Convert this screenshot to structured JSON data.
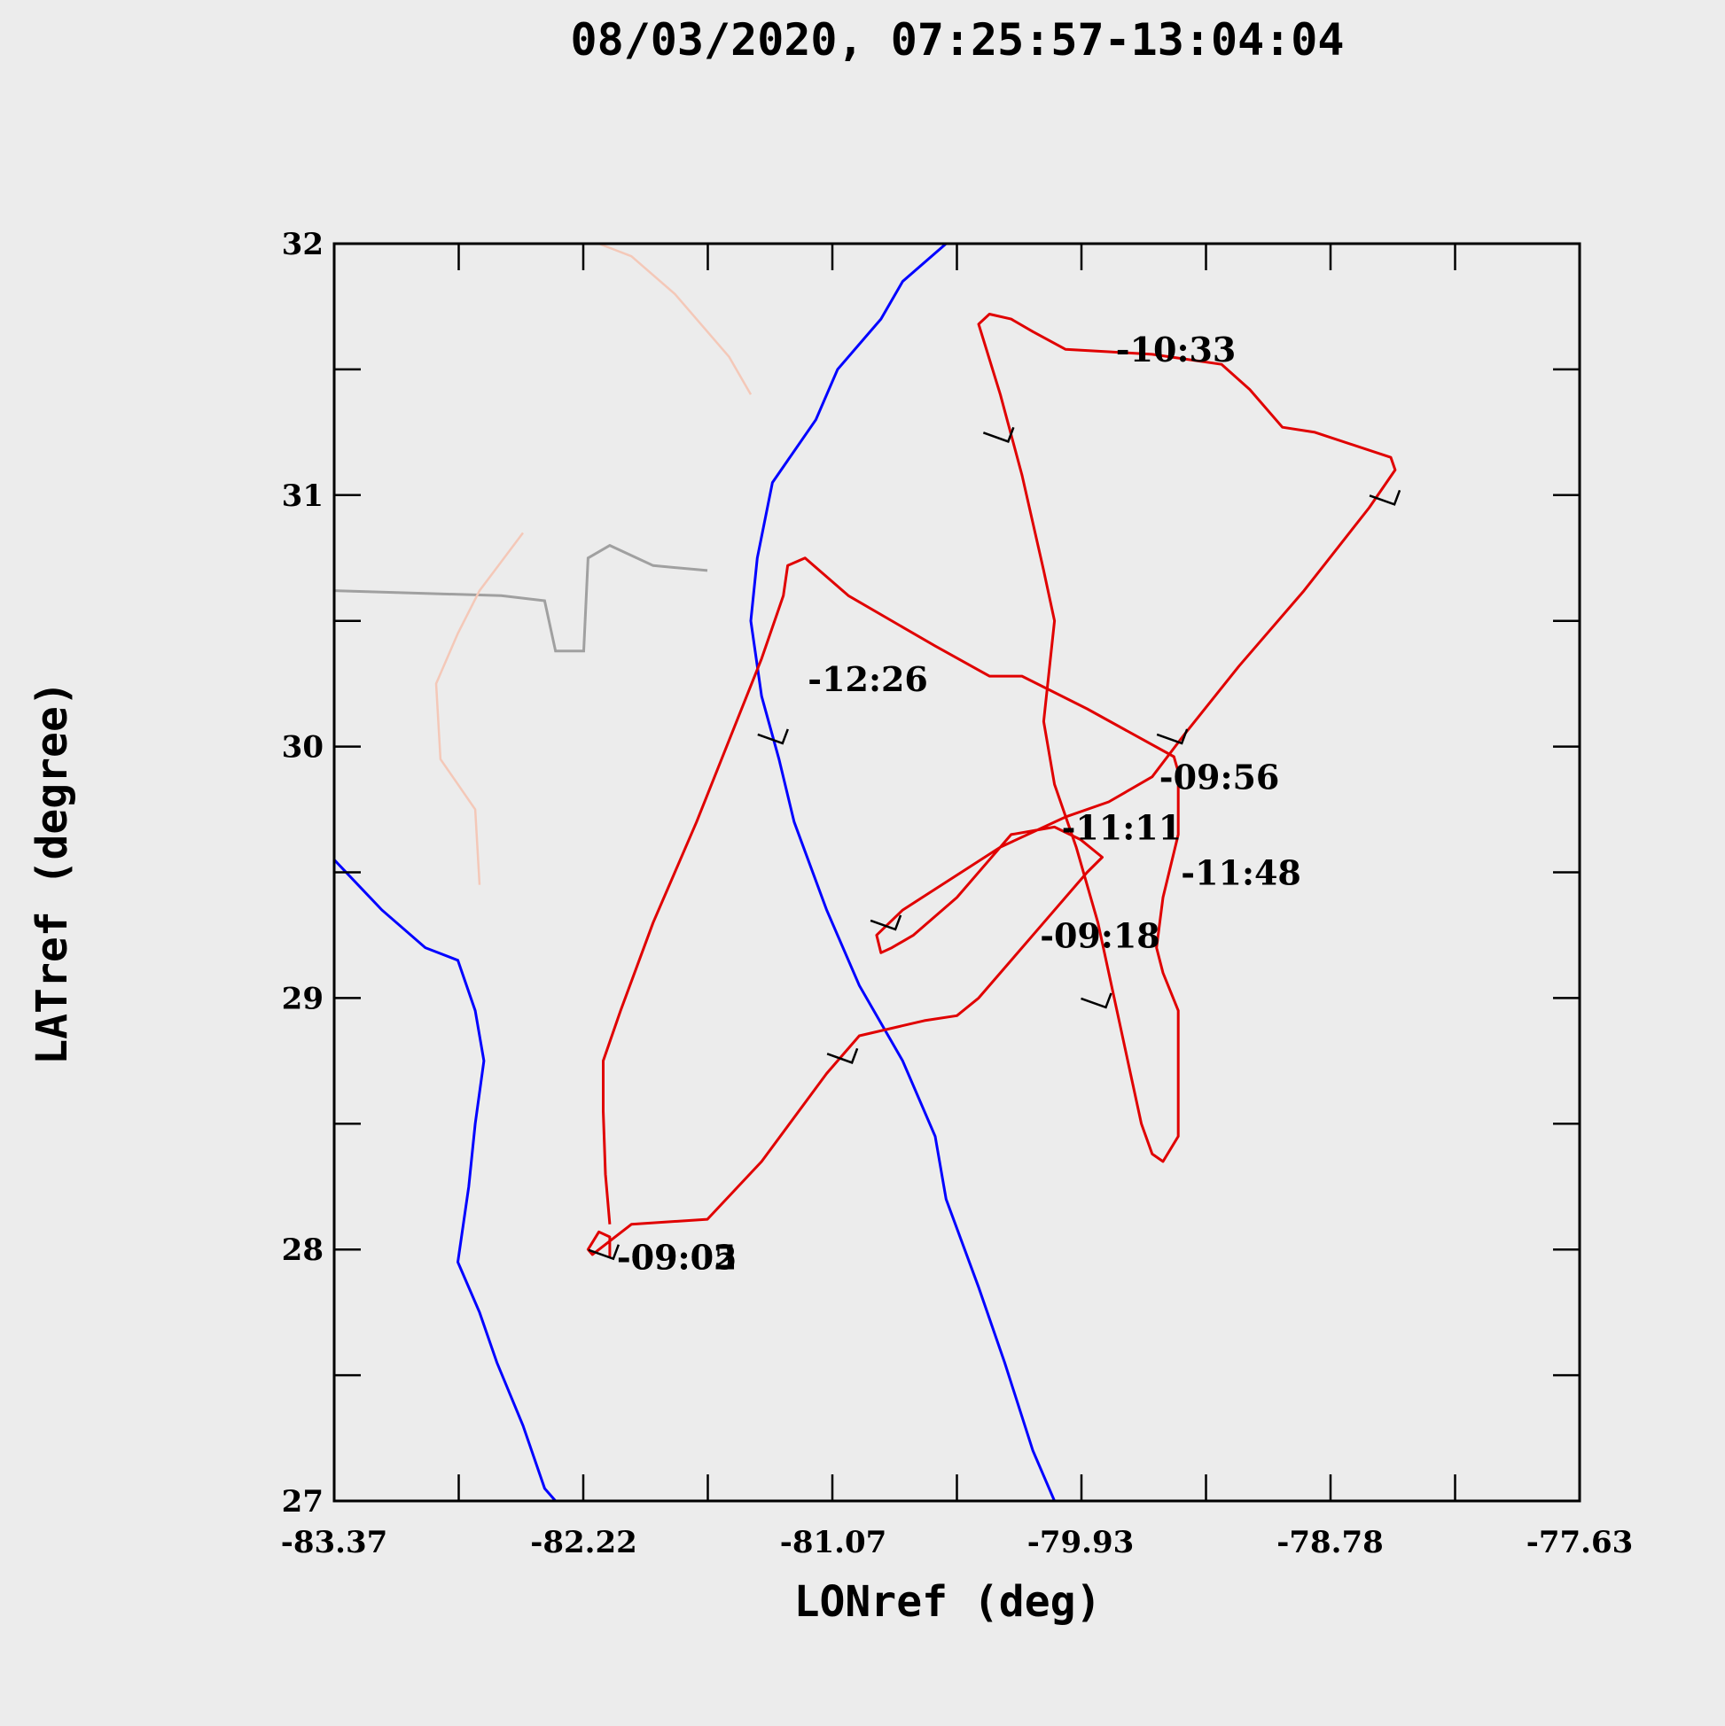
{
  "chart_data": {
    "type": "line",
    "title": "08/03/2020, 07:25:57-13:04:04",
    "xlabel": "LONref (deg)",
    "ylabel": "LATref (degree)",
    "xlim": [
      -83.37,
      -77.63
    ],
    "ylim": [
      27,
      32
    ],
    "x_ticks": [
      -83.37,
      -82.22,
      -81.07,
      -79.93,
      -78.78,
      -77.63
    ],
    "y_ticks": [
      27,
      28,
      29,
      30,
      31,
      32
    ],
    "grid": false,
    "colors": {
      "flight_track": "#e00000",
      "coastline": "#0000ff",
      "state_border": "#a0a0a0",
      "county_line": "#f4c8b8",
      "wind_barb": "#000000",
      "background": "#ececec"
    },
    "series": [
      {
        "points": [
          [
            -82.1,
            27.97
          ],
          [
            -82.1,
            28.05
          ],
          [
            -82.15,
            28.07
          ],
          [
            -82.2,
            28.0
          ],
          [
            -82.18,
            27.98
          ],
          [
            -82.0,
            28.1
          ],
          [
            -81.65,
            28.12
          ],
          [
            -81.4,
            28.35
          ],
          [
            -81.1,
            28.7
          ],
          [
            -80.95,
            28.85
          ],
          [
            -80.65,
            28.91
          ],
          [
            -80.5,
            28.93
          ],
          [
            -80.4,
            29.0
          ],
          [
            -80.1,
            29.3
          ],
          [
            -79.9,
            29.5
          ],
          [
            -79.83,
            29.56
          ],
          [
            -79.93,
            29.63
          ],
          [
            -80.05,
            29.68
          ],
          [
            -80.25,
            29.65
          ],
          [
            -80.35,
            29.55
          ],
          [
            -80.5,
            29.4
          ],
          [
            -80.7,
            29.25
          ],
          [
            -80.8,
            29.2
          ],
          [
            -80.85,
            29.18
          ],
          [
            -80.87,
            29.25
          ],
          [
            -80.75,
            29.35
          ],
          [
            -80.3,
            29.6
          ],
          [
            -80.0,
            29.72
          ],
          [
            -79.8,
            29.78
          ],
          [
            -79.6,
            29.88
          ],
          [
            -79.45,
            30.05
          ],
          [
            -79.2,
            30.32
          ],
          [
            -78.9,
            30.62
          ],
          [
            -78.6,
            30.95
          ],
          [
            -78.48,
            31.1
          ],
          [
            -78.5,
            31.15
          ],
          [
            -78.85,
            31.25
          ],
          [
            -79.0,
            31.27
          ],
          [
            -79.15,
            31.42
          ],
          [
            -79.28,
            31.52
          ],
          [
            -79.6,
            31.56
          ],
          [
            -79.8,
            31.57
          ],
          [
            -80.0,
            31.58
          ],
          [
            -80.15,
            31.65
          ],
          [
            -80.25,
            31.7
          ],
          [
            -80.35,
            31.72
          ],
          [
            -80.4,
            31.68
          ],
          [
            -80.3,
            31.4
          ],
          [
            -80.2,
            31.08
          ],
          [
            -80.1,
            30.7
          ],
          [
            -80.05,
            30.5
          ],
          [
            -80.1,
            30.1
          ],
          [
            -80.05,
            29.85
          ],
          [
            -79.95,
            29.6
          ],
          [
            -79.85,
            29.3
          ],
          [
            -79.75,
            28.9
          ],
          [
            -79.7,
            28.7
          ],
          [
            -79.65,
            28.5
          ],
          [
            -79.6,
            28.38
          ],
          [
            -79.55,
            28.35
          ],
          [
            -79.48,
            28.45
          ],
          [
            -79.48,
            28.8
          ],
          [
            -79.48,
            28.95
          ],
          [
            -79.55,
            29.1
          ],
          [
            -79.58,
            29.2
          ],
          [
            -79.55,
            29.4
          ],
          [
            -79.48,
            29.65
          ],
          [
            -79.48,
            29.9
          ],
          [
            -79.5,
            29.96
          ],
          [
            -79.9,
            30.15
          ],
          [
            -80.2,
            30.28
          ],
          [
            -80.35,
            30.28
          ],
          [
            -80.6,
            30.4
          ],
          [
            -81.0,
            30.6
          ],
          [
            -81.2,
            30.75
          ],
          [
            -81.28,
            30.72
          ],
          [
            -81.3,
            30.6
          ],
          [
            -81.4,
            30.35
          ],
          [
            -81.7,
            29.7
          ],
          [
            -81.9,
            29.3
          ],
          [
            -82.05,
            28.95
          ],
          [
            -82.13,
            28.75
          ],
          [
            -82.13,
            28.55
          ],
          [
            -82.12,
            28.3
          ],
          [
            -82.1,
            28.1
          ]
        ]
      }
    ],
    "annotations": [
      {
        "text": "-10:33",
        "x": -79.8,
        "y": 31.58
      },
      {
        "text": "-12:26",
        "x": -81.22,
        "y": 30.27
      },
      {
        "text": "-09:56",
        "x": -79.6,
        "y": 29.88
      },
      {
        "text": "-11:11",
        "x": -80.05,
        "y": 29.68
      },
      {
        "text": "-11:48",
        "x": -79.5,
        "y": 29.5
      },
      {
        "text": "-09:18",
        "x": -80.15,
        "y": 29.25
      },
      {
        "text": "-09:05",
        "x": -82.1,
        "y": 27.97
      },
      {
        "text": "-09:02",
        "x": -82.1,
        "y": 27.97
      }
    ],
    "wind_barbs": [
      {
        "x": -80.28,
        "y": 31.22
      },
      {
        "x": -78.5,
        "y": 30.97
      },
      {
        "x": -79.48,
        "y": 30.02
      },
      {
        "x": -81.32,
        "y": 30.02
      },
      {
        "x": -80.8,
        "y": 29.28
      },
      {
        "x": -79.83,
        "y": 28.97
      },
      {
        "x": -81.0,
        "y": 28.75
      },
      {
        "x": -82.1,
        "y": 27.97
      }
    ]
  }
}
